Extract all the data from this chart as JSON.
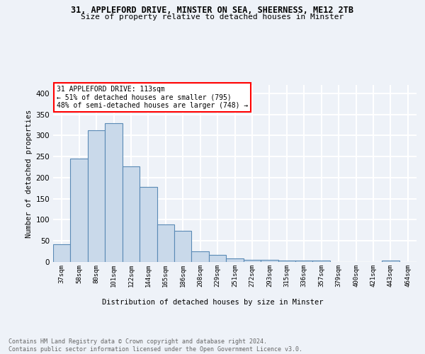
{
  "title1": "31, APPLEFORD DRIVE, MINSTER ON SEA, SHEERNESS, ME12 2TB",
  "title2": "Size of property relative to detached houses in Minster",
  "xlabel": "Distribution of detached houses by size in Minster",
  "ylabel": "Number of detached properties",
  "categories": [
    "37sqm",
    "58sqm",
    "80sqm",
    "101sqm",
    "122sqm",
    "144sqm",
    "165sqm",
    "186sqm",
    "208sqm",
    "229sqm",
    "251sqm",
    "272sqm",
    "293sqm",
    "315sqm",
    "336sqm",
    "357sqm",
    "379sqm",
    "400sqm",
    "421sqm",
    "443sqm",
    "464sqm"
  ],
  "values": [
    42,
    245,
    312,
    330,
    227,
    178,
    89,
    74,
    26,
    17,
    9,
    5,
    5,
    3,
    3,
    3,
    0,
    0,
    0,
    4,
    0
  ],
  "bar_color": "#c9d9ea",
  "bar_edge_color": "#5a8ab5",
  "annotation_line1": "31 APPLEFORD DRIVE: 113sqm",
  "annotation_line2": "← 51% of detached houses are smaller (795)",
  "annotation_line3": "48% of semi-detached houses are larger (748) →",
  "annotation_box_color": "white",
  "annotation_box_edge_color": "red",
  "footer": "Contains HM Land Registry data © Crown copyright and database right 2024.\nContains public sector information licensed under the Open Government Licence v3.0.",
  "ylim": [
    0,
    420
  ],
  "yticks": [
    0,
    50,
    100,
    150,
    200,
    250,
    300,
    350,
    400
  ],
  "background_color": "#eef2f8",
  "grid_color": "white"
}
